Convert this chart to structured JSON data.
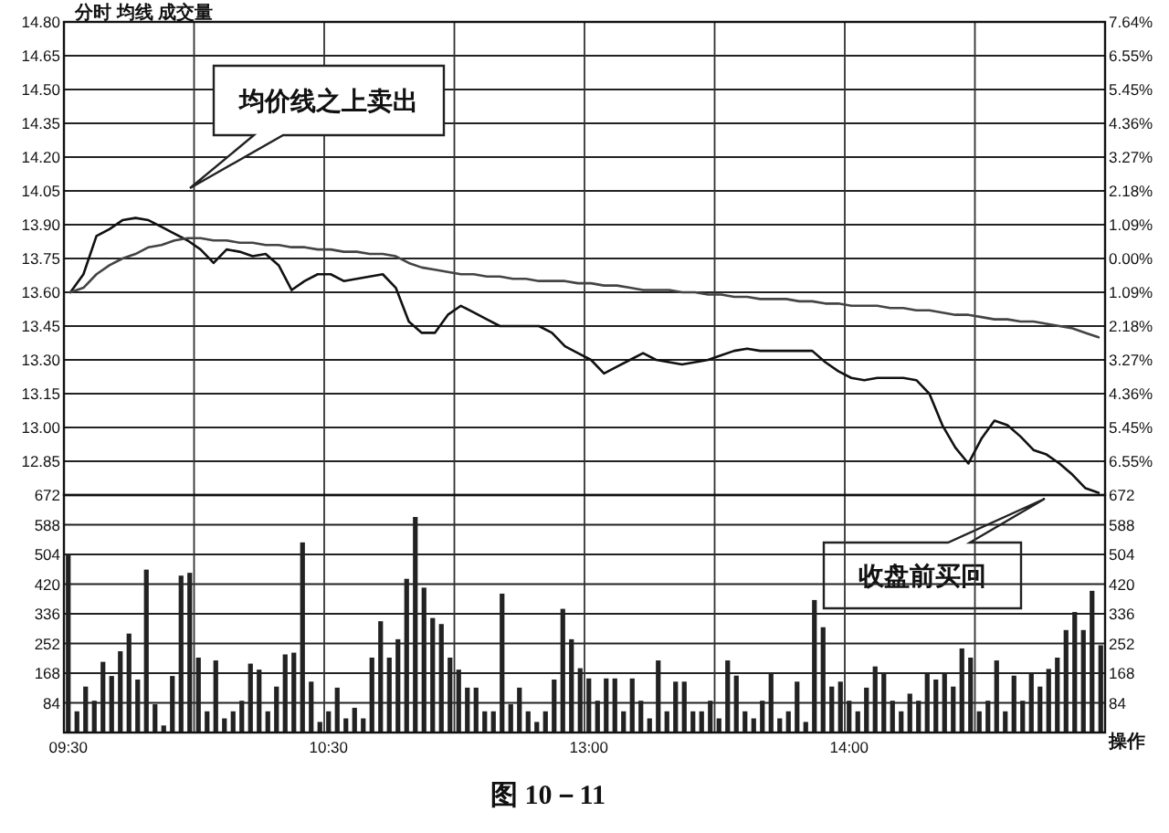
{
  "chart_data": [
    {
      "type": "line",
      "title": "分时 均线 成交量",
      "categories": [
        null,
        null,
        null,
        null,
        null,
        null,
        null,
        null,
        null,
        null,
        null,
        null,
        null,
        null,
        null,
        null,
        null,
        null,
        null,
        null,
        null,
        null,
        null,
        null,
        null,
        null,
        null,
        null,
        null,
        null,
        null,
        null,
        null,
        null,
        null,
        null,
        null,
        null,
        null,
        null,
        null,
        null,
        null,
        null,
        null,
        null,
        null,
        null,
        null,
        null,
        null,
        null,
        null,
        null,
        null,
        null,
        null,
        null,
        null,
        null,
        null,
        null,
        null,
        null,
        null,
        null,
        null,
        null,
        null,
        null,
        null,
        null,
        null,
        null,
        null,
        null,
        null,
        null,
        null,
        null
      ],
      "ylim": [
        12.7,
        14.8
      ],
      "yticks": [
        {
          "value": 14.8,
          "label": "14.80"
        },
        {
          "value": 14.65,
          "label": "14.65"
        },
        {
          "value": 14.5,
          "label": "14.50"
        },
        {
          "value": 14.35,
          "label": "14.35"
        },
        {
          "value": 14.2,
          "label": "14.20"
        },
        {
          "value": 14.05,
          "label": "14.05"
        },
        {
          "value": 13.9,
          "label": "13.90"
        },
        {
          "value": 13.75,
          "label": "13.75"
        },
        {
          "value": 13.6,
          "label": "13.60"
        },
        {
          "value": 13.45,
          "label": "13.45"
        },
        {
          "value": 13.3,
          "label": "13.30"
        },
        {
          "value": 13.15,
          "label": "13.15"
        },
        {
          "value": 13.0,
          "label": "13.00"
        },
        {
          "value": 12.85,
          "label": "12.85"
        }
      ],
      "y2lim": [
        -7.64,
        7.64
      ],
      "y2ticks": [
        {
          "value": 7.64,
          "label": "7.64%"
        },
        {
          "value": 6.55,
          "label": "6.55%"
        },
        {
          "value": 5.45,
          "label": "5.45%"
        },
        {
          "value": 4.36,
          "label": "4.36%"
        },
        {
          "value": 3.27,
          "label": "3.27%"
        },
        {
          "value": 2.18,
          "label": "2.18%"
        },
        {
          "value": 1.09,
          "label": "1.09%"
        },
        {
          "value": 0,
          "label": "0.00%"
        },
        {
          "value": -1.09,
          "label": "1.09%"
        },
        {
          "value": -2.18,
          "label": "2.18%"
        },
        {
          "value": -3.27,
          "label": "3.27%"
        },
        {
          "value": -4.36,
          "label": "4.36%"
        },
        {
          "value": -5.45,
          "label": "5.45%"
        },
        {
          "value": -6.55,
          "label": "6.55%"
        }
      ],
      "grid": true,
      "tick_labels": "y",
      "series": [
        {
          "color": "#111111",
          "values": [
            13.6,
            13.68,
            13.85,
            13.88,
            13.92,
            13.93,
            13.92,
            13.89,
            13.86,
            13.83,
            13.79,
            13.73,
            13.79,
            13.78,
            13.76,
            13.77,
            13.72,
            13.61,
            13.65,
            13.68,
            13.68,
            13.65,
            13.66,
            13.67,
            13.68,
            13.62,
            13.47,
            13.42,
            13.42,
            13.5,
            13.54,
            13.51,
            13.48,
            13.45,
            13.45,
            13.45,
            13.45,
            13.42,
            13.36,
            13.33,
            13.3,
            13.24,
            13.27,
            13.3,
            13.33,
            13.3,
            13.29,
            13.28,
            13.29,
            13.3,
            13.32,
            13.34,
            13.35,
            13.34,
            13.34,
            13.34,
            13.34,
            13.34,
            13.29,
            13.25,
            13.22,
            13.21,
            13.22,
            13.22,
            13.22,
            13.21,
            13.15,
            13.01,
            12.91,
            12.84,
            12.95,
            13.03,
            13.01,
            12.96,
            12.9,
            12.88,
            12.84,
            12.79,
            12.73,
            12.71
          ]
        },
        {
          "color": "#444444",
          "values": [
            13.6,
            13.62,
            13.68,
            13.72,
            13.75,
            13.77,
            13.8,
            13.81,
            13.83,
            13.84,
            13.84,
            13.83,
            13.83,
            13.82,
            13.82,
            13.81,
            13.81,
            13.8,
            13.8,
            13.79,
            13.79,
            13.78,
            13.78,
            13.77,
            13.77,
            13.76,
            13.73,
            13.71,
            13.7,
            13.69,
            13.68,
            13.68,
            13.67,
            13.67,
            13.66,
            13.66,
            13.65,
            13.65,
            13.65,
            13.64,
            13.64,
            13.63,
            13.63,
            13.62,
            13.61,
            13.61,
            13.61,
            13.6,
            13.6,
            13.59,
            13.59,
            13.58,
            13.58,
            13.57,
            13.57,
            13.57,
            13.56,
            13.56,
            13.55,
            13.55,
            13.54,
            13.54,
            13.54,
            13.53,
            13.53,
            13.52,
            13.52,
            13.51,
            13.5,
            13.5,
            13.49,
            13.48,
            13.48,
            13.47,
            13.47,
            13.46,
            13.45,
            13.44,
            13.42,
            13.4
          ]
        }
      ],
      "annotations": [
        "均价线之上卖出",
        "收盘前买回"
      ]
    },
    {
      "type": "bar",
      "categories": [
        "09:30",
        null,
        null,
        null,
        null,
        null,
        null,
        null,
        null,
        null,
        null,
        null,
        null,
        null,
        null,
        null,
        null,
        null,
        null,
        null,
        null,
        null,
        null,
        null,
        null,
        null,
        null,
        null,
        null,
        null,
        "10:30",
        null,
        null,
        null,
        null,
        null,
        null,
        null,
        null,
        null,
        null,
        null,
        null,
        null,
        null,
        null,
        null,
        null,
        null,
        null,
        null,
        null,
        null,
        null,
        null,
        null,
        null,
        null,
        null,
        null,
        "13:00",
        null,
        null,
        null,
        null,
        null,
        null,
        null,
        null,
        null,
        null,
        null,
        null,
        null,
        null,
        null,
        null,
        null,
        null,
        null,
        null,
        null,
        null,
        null,
        null,
        null,
        null,
        null,
        null,
        null,
        "14:00",
        null,
        null,
        null,
        null,
        null,
        null,
        null,
        null,
        null,
        null,
        null,
        null,
        null,
        null,
        null,
        null,
        null,
        null,
        null,
        null,
        null,
        null,
        null,
        null,
        null,
        null,
        null,
        null,
        null
      ],
      "ylim": [
        0,
        672
      ],
      "yticks": [
        84,
        168,
        252,
        336,
        420,
        504,
        588,
        672
      ],
      "y2lim": [
        0,
        672
      ],
      "y2ticks": [
        84,
        168,
        252,
        336,
        420,
        504,
        588,
        672
      ],
      "grid": true,
      "color": "#222222",
      "values": [
        504,
        60,
        130,
        90,
        200,
        160,
        230,
        280,
        150,
        461,
        80,
        20,
        160,
        444,
        452,
        212,
        60,
        204,
        40,
        60,
        90,
        195,
        178,
        60,
        130,
        221,
        226,
        538,
        144,
        30,
        60,
        127,
        40,
        70,
        40,
        212,
        315,
        212,
        264,
        435,
        610,
        410,
        324,
        307,
        212,
        178,
        127,
        127,
        60,
        60,
        393,
        80,
        127,
        60,
        30,
        60,
        150,
        350,
        264,
        182,
        153,
        90,
        153,
        153,
        60,
        153,
        90,
        40,
        204,
        60,
        144,
        144,
        60,
        60,
        90,
        40,
        204,
        161,
        60,
        40,
        90,
        170,
        40,
        60,
        144,
        30,
        375,
        298,
        130,
        144,
        90,
        60,
        127,
        187,
        170,
        90,
        60,
        110,
        90,
        170,
        150,
        170,
        130,
        238,
        212,
        60,
        90,
        204,
        60,
        161,
        90,
        170,
        130,
        180,
        212,
        290,
        341,
        290,
        401,
        247
      ],
      "annotations": [
        "操作",
        "图 10－11"
      ]
    }
  ]
}
